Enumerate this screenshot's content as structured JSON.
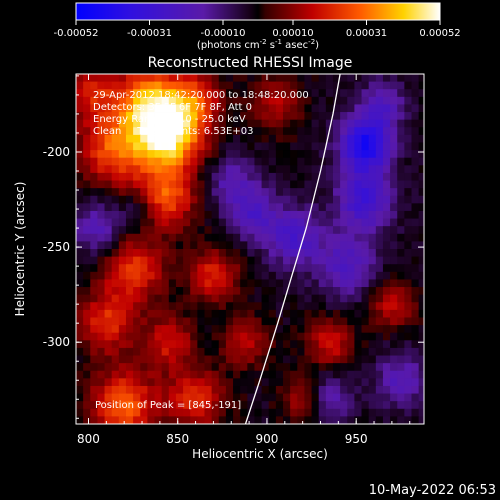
{
  "chart_data": {
    "type": "heatmap",
    "title": "Reconstructed RHESSI Image",
    "xlabel": "Heliocentric X (arcsec)",
    "ylabel": "Heliocentric Y (arcsec)",
    "xlim": [
      793,
      988
    ],
    "ylim": [
      -343,
      -159
    ],
    "x_ticks": [
      800,
      850,
      900,
      950
    ],
    "y_ticks": [
      -200,
      -250,
      -300
    ],
    "colorbar": {
      "ticks": [
        "-0.00052",
        "-0.00031",
        "-0.00010",
        "0.00010",
        "0.00031",
        "0.00052"
      ],
      "label_main": "(photons cm",
      "label_exp1": "-2",
      "label_mid1": " s",
      "label_exp2": "-1",
      "label_mid2": " asec",
      "label_exp3": "-2",
      "label_end": ")",
      "range": [
        -0.00052,
        0.00052
      ]
    },
    "annotations": {
      "time_range": "29-Apr-2012 18:42:20.000 to 18:48:20.000",
      "detectors": "Detectors: 3F 5F 6F 7F 8F, Att 0",
      "energy_range": "Energy Range: 12.0 - 25.0 keV",
      "algorithm": "Clean     Total counts: 6.53E+03",
      "peak": "Position of Peak = [845,-191]"
    },
    "limb_curve": [
      [
        888,
        -343
      ],
      [
        896,
        -320
      ],
      [
        906,
        -290
      ],
      [
        914,
        -265
      ],
      [
        922,
        -240
      ],
      [
        930,
        -210
      ],
      [
        937,
        -180
      ],
      [
        941,
        -159
      ]
    ],
    "sources": [
      {
        "x": 845,
        "y": -191,
        "w": 0.00052,
        "r": 13
      },
      {
        "x": 832,
        "y": -172,
        "w": 0.00032,
        "r": 12
      },
      {
        "x": 858,
        "y": -172,
        "w": 0.00024,
        "r": 11
      },
      {
        "x": 815,
        "y": -198,
        "w": 0.0003,
        "r": 14
      },
      {
        "x": 802,
        "y": -168,
        "w": 0.0002,
        "r": 10
      },
      {
        "x": 843,
        "y": -225,
        "w": 0.0003,
        "r": 11
      },
      {
        "x": 825,
        "y": -262,
        "w": 0.00026,
        "r": 12
      },
      {
        "x": 870,
        "y": -265,
        "w": 0.00022,
        "r": 10
      },
      {
        "x": 810,
        "y": -290,
        "w": 0.00024,
        "r": 11
      },
      {
        "x": 845,
        "y": -300,
        "w": 0.0002,
        "r": 10
      },
      {
        "x": 820,
        "y": -333,
        "w": 0.0003,
        "r": 13
      },
      {
        "x": 860,
        "y": -330,
        "w": 0.00024,
        "r": 11
      },
      {
        "x": 888,
        "y": -300,
        "w": 0.00018,
        "r": 9
      },
      {
        "x": 935,
        "y": -300,
        "w": 0.0002,
        "r": 9
      },
      {
        "x": 970,
        "y": -280,
        "w": 0.00018,
        "r": 9
      },
      {
        "x": 905,
        "y": -175,
        "w": 0.00016,
        "r": 10
      },
      {
        "x": 920,
        "y": -330,
        "w": 0.00016,
        "r": 8
      },
      {
        "x": 955,
        "y": -196,
        "w": -0.00042,
        "r": 10
      },
      {
        "x": 955,
        "y": -225,
        "w": -0.00028,
        "r": 11
      },
      {
        "x": 945,
        "y": -260,
        "w": -0.0002,
        "r": 12
      },
      {
        "x": 915,
        "y": -245,
        "w": -0.00022,
        "r": 11
      },
      {
        "x": 892,
        "y": -232,
        "w": -0.0002,
        "r": 10
      },
      {
        "x": 880,
        "y": -215,
        "w": -0.00016,
        "r": 9
      },
      {
        "x": 965,
        "y": -175,
        "w": -0.00018,
        "r": 9
      },
      {
        "x": 935,
        "y": -330,
        "w": -0.00016,
        "r": 9
      },
      {
        "x": 975,
        "y": -320,
        "w": -0.00018,
        "r": 10
      },
      {
        "x": 805,
        "y": -240,
        "w": -0.00018,
        "r": 10
      },
      {
        "x": 830,
        "y": -230,
        "w": -0.00012,
        "r": 8
      }
    ],
    "grid": false,
    "legend": "none"
  },
  "footer": {
    "date": "10-May-2022 06:53"
  }
}
